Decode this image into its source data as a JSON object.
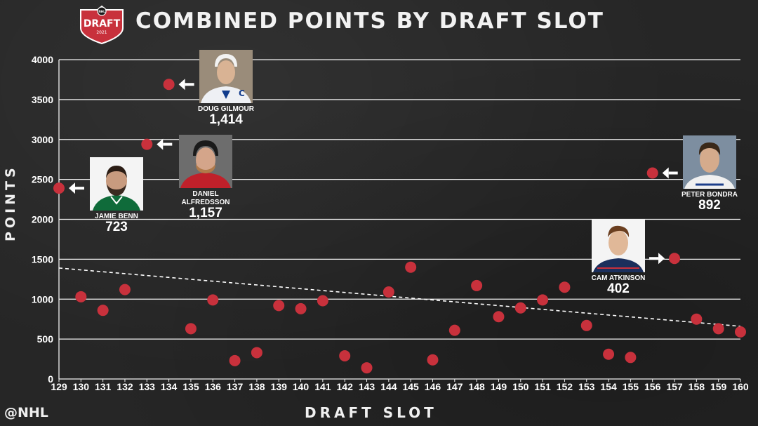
{
  "header": {
    "title": "COMBINED POINTS BY DRAFT SLOT",
    "logo_text": "DRAFT",
    "logo_year": "2021",
    "logo_top": "NHL"
  },
  "footer": {
    "handle": "@NHL"
  },
  "colors": {
    "marker": "#c8313c",
    "grid": "#f2f2f2",
    "trend": "#ffffff",
    "background": "#262626"
  },
  "chart_data": {
    "type": "scatter",
    "title": "COMBINED POINTS BY DRAFT SLOT",
    "xlabel": "DRAFT SLOT",
    "ylabel": "POINTS",
    "xlim": [
      129,
      160
    ],
    "ylim": [
      0,
      4000
    ],
    "yticks": [
      0,
      500,
      1000,
      1500,
      2000,
      2500,
      3000,
      3500,
      4000
    ],
    "xticks": [
      129,
      130,
      131,
      132,
      133,
      134,
      135,
      136,
      137,
      138,
      139,
      140,
      141,
      142,
      143,
      144,
      145,
      146,
      147,
      148,
      149,
      150,
      151,
      152,
      153,
      154,
      155,
      156,
      157,
      158,
      159,
      160
    ],
    "grid": "horizontal",
    "x": [
      129,
      130,
      131,
      132,
      133,
      134,
      135,
      136,
      137,
      138,
      139,
      140,
      141,
      142,
      143,
      144,
      145,
      146,
      147,
      148,
      149,
      150,
      151,
      152,
      153,
      154,
      155,
      156,
      157,
      158,
      159,
      160
    ],
    "y": [
      2390,
      1030,
      860,
      1120,
      2940,
      3690,
      630,
      990,
      230,
      330,
      920,
      880,
      980,
      290,
      140,
      1090,
      1400,
      240,
      610,
      1170,
      780,
      890,
      990,
      1150,
      670,
      310,
      270,
      2580,
      1510,
      750,
      630,
      590
    ],
    "trendline": {
      "style": "dashed",
      "x": [
        129,
        160
      ],
      "y": [
        1390,
        660
      ]
    },
    "annotations": [
      {
        "id": "benn",
        "name": [
          "JAMIE BENN"
        ],
        "points": "723",
        "slot": 129
      },
      {
        "id": "alfredsson",
        "name": [
          "DANIEL",
          "ALFREDSSON"
        ],
        "points": "1,157",
        "slot": 133
      },
      {
        "id": "gilmour",
        "name": [
          "DOUG GILMOUR"
        ],
        "points": "1,414",
        "slot": 134
      },
      {
        "id": "bondra",
        "name": [
          "PETER BONDRA"
        ],
        "points": "892",
        "slot": 156
      },
      {
        "id": "atkinson",
        "name": [
          "CAM ATKINSON"
        ],
        "points": "402",
        "slot": 157
      }
    ]
  }
}
